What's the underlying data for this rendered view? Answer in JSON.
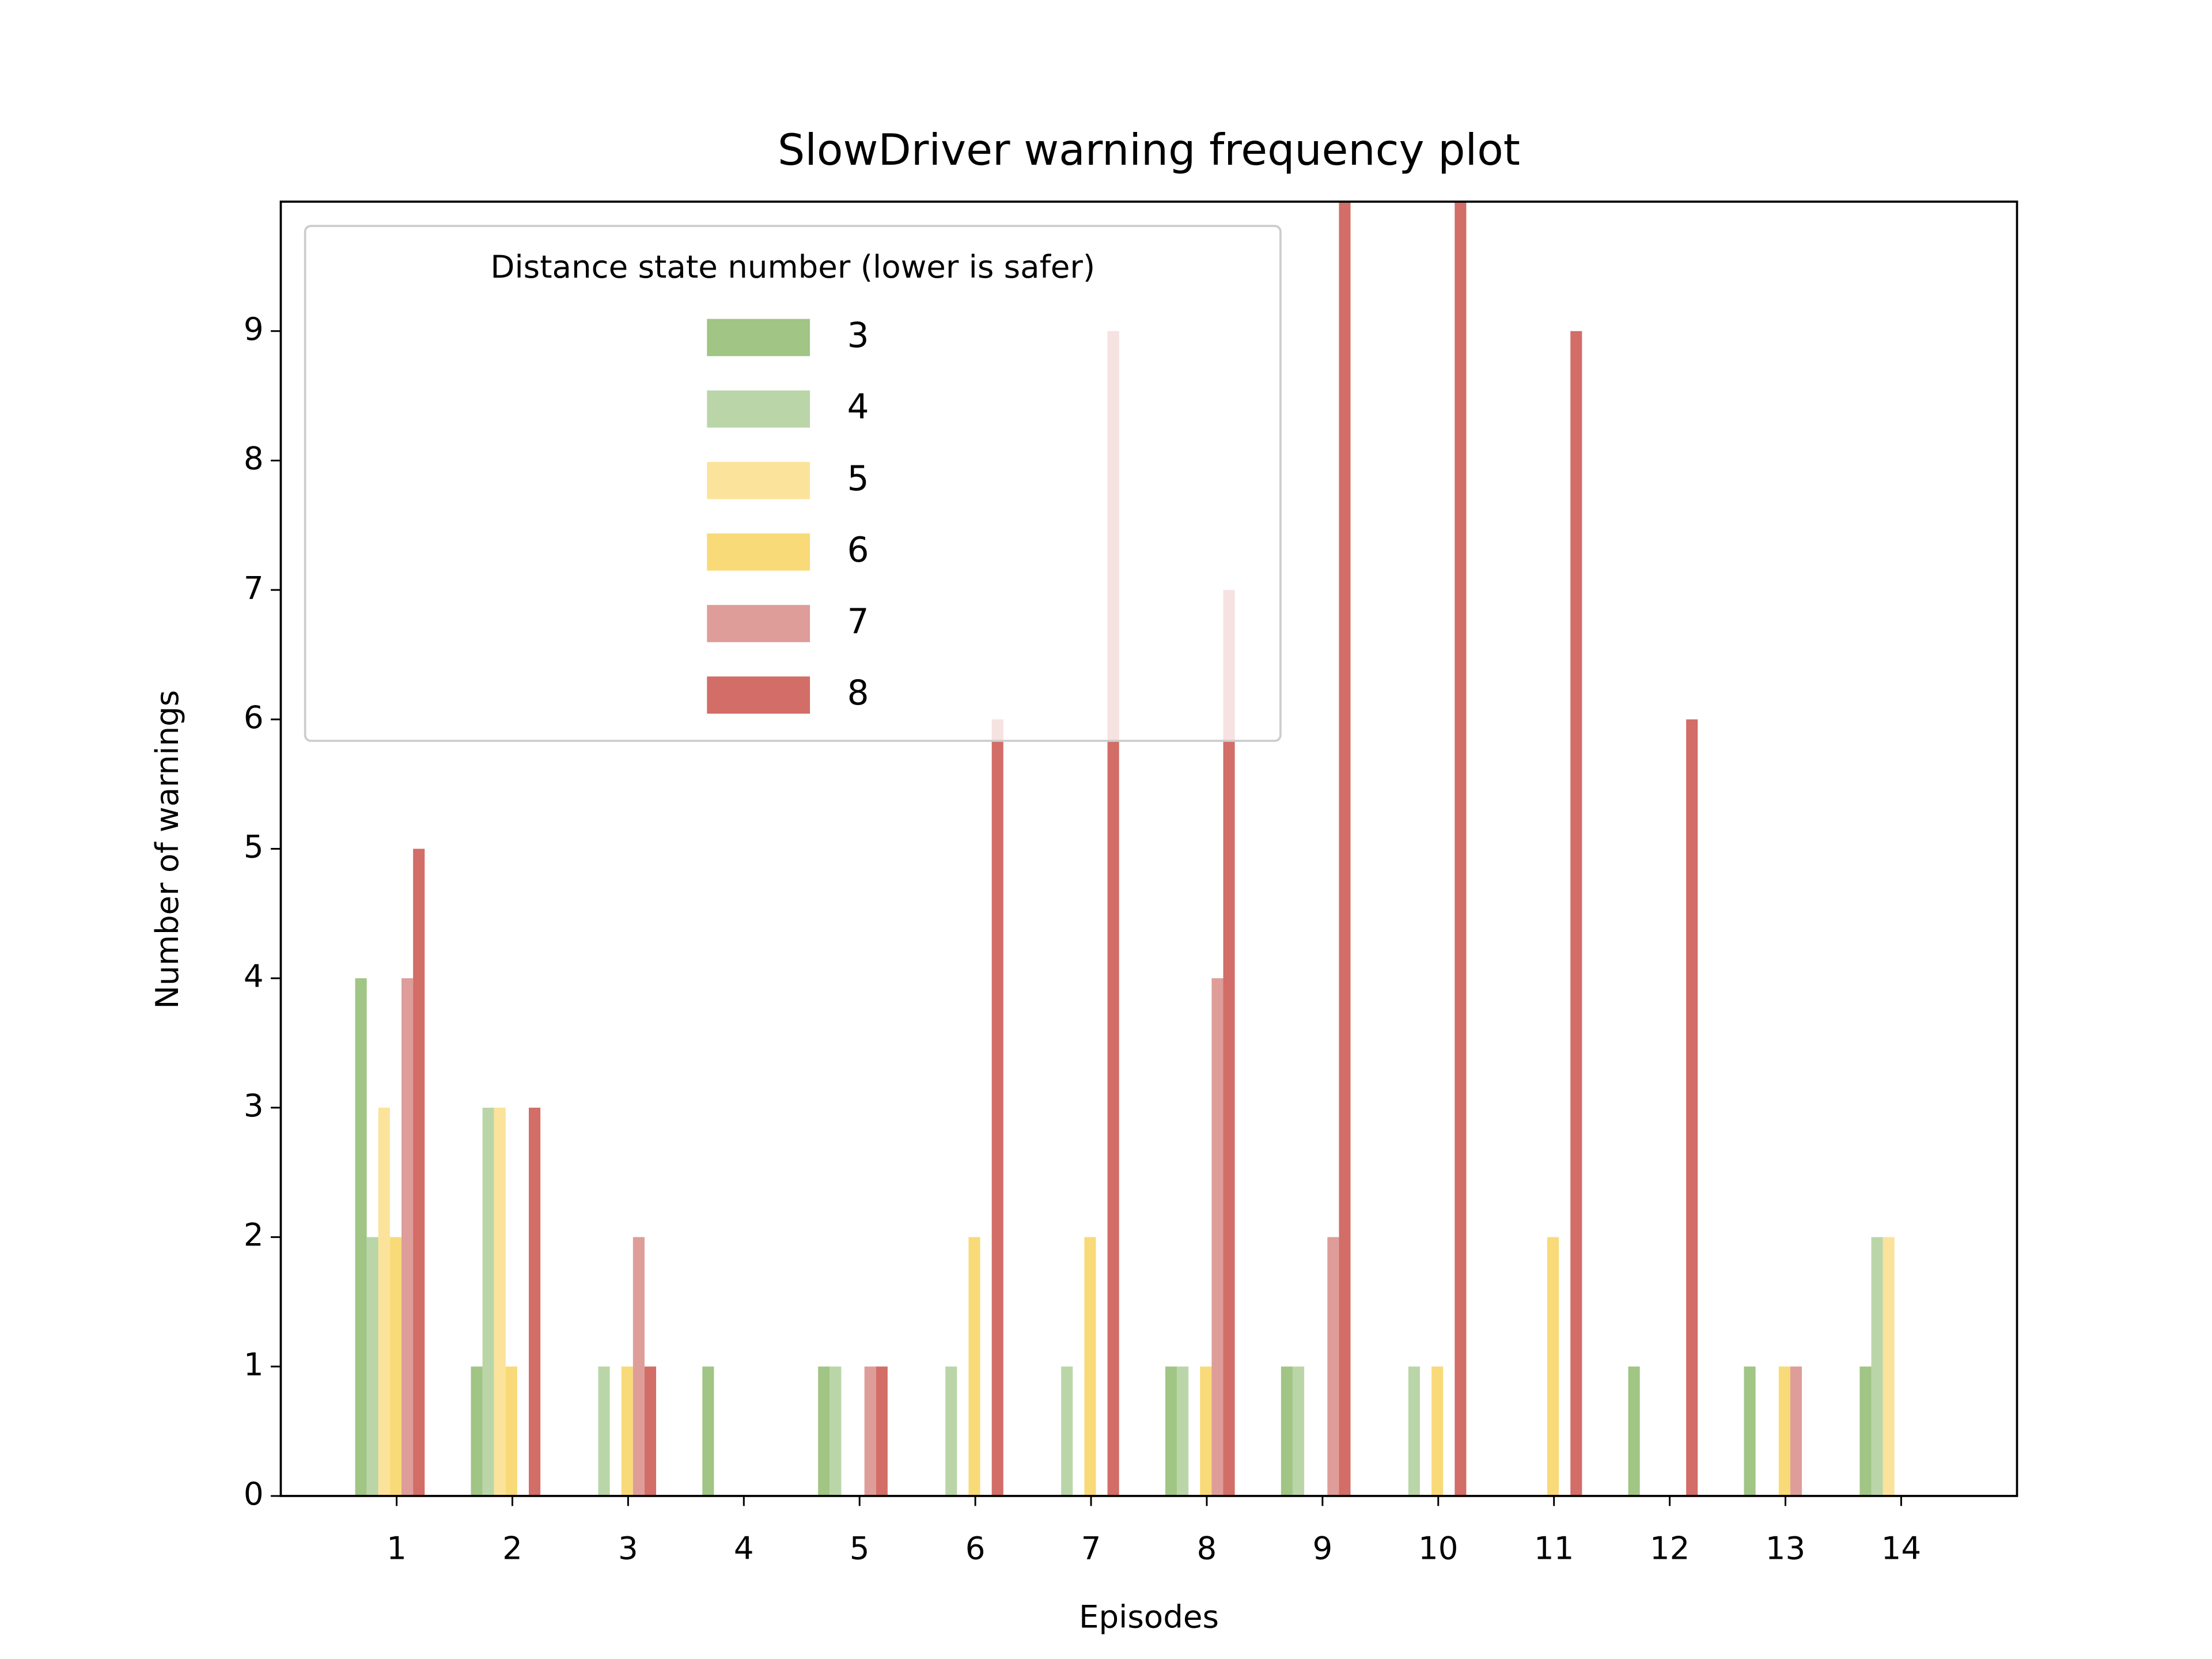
{
  "chart_data": {
    "type": "bar",
    "title": "SlowDriver warning frequency plot",
    "x_label": "Episodes",
    "y_label": "Number of warnings",
    "categories": [
      "1",
      "2",
      "3",
      "4",
      "5",
      "6",
      "7",
      "8",
      "9",
      "10",
      "11",
      "12",
      "13",
      "14"
    ],
    "legend_title": "Distance state number (lower is safer)",
    "legend": "upper left",
    "series": [
      {
        "name": "3",
        "color": "#a0c584",
        "values": [
          4,
          1,
          0,
          1,
          1,
          0,
          0,
          1,
          1,
          0,
          0,
          1,
          1,
          1
        ]
      },
      {
        "name": "4",
        "color": "#bad6a8",
        "values": [
          2,
          3,
          1,
          0,
          1,
          1,
          1,
          1,
          1,
          1,
          0,
          0,
          0,
          2
        ]
      },
      {
        "name": "5",
        "color": "#fbe39b",
        "values": [
          3,
          3,
          0,
          0,
          0,
          0,
          0,
          0,
          0,
          0,
          0,
          0,
          0,
          2
        ]
      },
      {
        "name": "6",
        "color": "#f8da78",
        "values": [
          2,
          1,
          1,
          0,
          0,
          2,
          2,
          1,
          0,
          1,
          2,
          0,
          1,
          0
        ]
      },
      {
        "name": "7",
        "color": "#de9d99",
        "values": [
          4,
          0,
          2,
          0,
          1,
          0,
          0,
          4,
          2,
          0,
          0,
          0,
          1,
          0
        ]
      },
      {
        "name": "8",
        "color": "#d26d67",
        "values": [
          5,
          3,
          1,
          0,
          1,
          6,
          9,
          7,
          10,
          10,
          9,
          6,
          0,
          0
        ]
      }
    ],
    "ylim": [
      0,
      10
    ],
    "yticks": [
      0,
      1,
      2,
      3,
      4,
      5,
      6,
      7,
      8,
      9
    ]
  }
}
